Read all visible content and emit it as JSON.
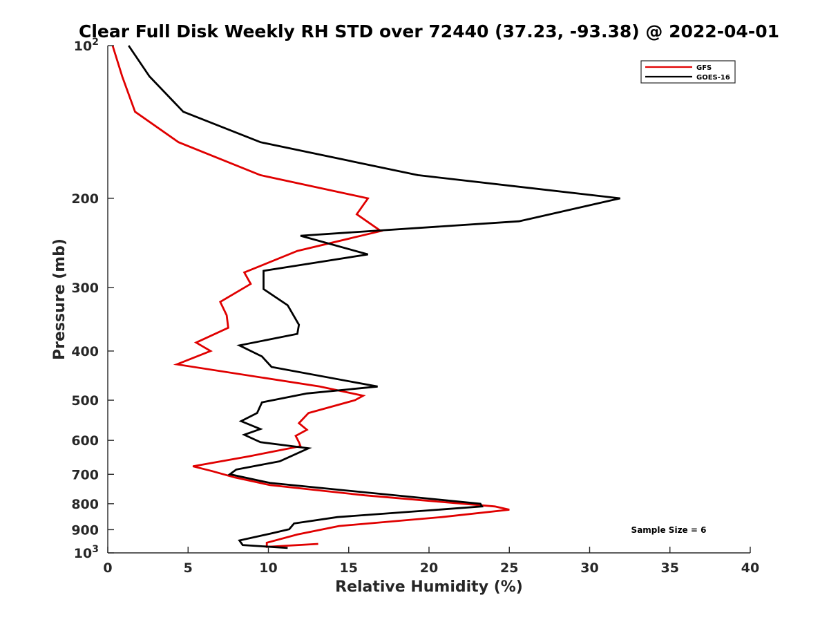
{
  "chart_data": {
    "type": "line",
    "title": "Clear Full Disk Weekly RH STD over 72440 (37.23, -93.38) @ 2022-04-01",
    "xlabel": "Relative Humidity (%)",
    "ylabel": "Pressure (mb)",
    "xlim": [
      0,
      40
    ],
    "ylim": [
      100,
      1000
    ],
    "y_scale": "log",
    "y_reversed": true,
    "x_ticks": [
      "0",
      "5",
      "10",
      "15",
      "20",
      "25",
      "30",
      "35",
      "40"
    ],
    "x_tick_values": [
      0,
      5,
      10,
      15,
      20,
      25,
      30,
      35,
      40
    ],
    "y_ticks": [
      {
        "value": 100,
        "base": "10",
        "exp": "2"
      },
      {
        "value": 200,
        "label": "200"
      },
      {
        "value": 300,
        "label": "300"
      },
      {
        "value": 400,
        "label": "400"
      },
      {
        "value": 500,
        "label": "500"
      },
      {
        "value": 600,
        "label": "600"
      },
      {
        "value": 700,
        "label": "700"
      },
      {
        "value": 800,
        "label": "800"
      },
      {
        "value": 900,
        "label": "900"
      },
      {
        "value": 1000,
        "base": "10",
        "exp": "3"
      }
    ],
    "grid": false,
    "legend_position": "top-right",
    "annotation": "Sample Size = 6",
    "series": [
      {
        "name": "GFS",
        "color": "#e00000",
        "points": [
          [
            0.3,
            100
          ],
          [
            0.9,
            115
          ],
          [
            1.7,
            135
          ],
          [
            4.4,
            155
          ],
          [
            9.5,
            180
          ],
          [
            16.2,
            200
          ],
          [
            15.5,
            215
          ],
          [
            17.0,
            232
          ],
          [
            11.8,
            254
          ],
          [
            8.5,
            280
          ],
          [
            8.9,
            295
          ],
          [
            7.0,
            320
          ],
          [
            7.4,
            340
          ],
          [
            7.5,
            360
          ],
          [
            5.5,
            385
          ],
          [
            6.4,
            400
          ],
          [
            4.3,
            425
          ],
          [
            13.2,
            470
          ],
          [
            15.9,
            490
          ],
          [
            15.4,
            500
          ],
          [
            12.5,
            530
          ],
          [
            11.9,
            555
          ],
          [
            12.4,
            572
          ],
          [
            11.7,
            588
          ],
          [
            11.9,
            605
          ],
          [
            12.0,
            616
          ],
          [
            8.8,
            645
          ],
          [
            5.3,
            675
          ],
          [
            6.5,
            690
          ],
          [
            7.9,
            710
          ],
          [
            10.1,
            735
          ],
          [
            16.0,
            770
          ],
          [
            24.1,
            810
          ],
          [
            25.0,
            822
          ],
          [
            20.8,
            850
          ],
          [
            14.4,
            885
          ],
          [
            11.8,
            920
          ],
          [
            9.9,
            955
          ],
          [
            9.9,
            973
          ],
          [
            13.1,
            960
          ]
        ]
      },
      {
        "name": "GOES-16",
        "color": "#000000",
        "points": [
          [
            1.3,
            100
          ],
          [
            2.6,
            115
          ],
          [
            4.7,
            135
          ],
          [
            9.5,
            155
          ],
          [
            19.3,
            180
          ],
          [
            31.9,
            200
          ],
          [
            25.6,
            222
          ],
          [
            12.0,
            237
          ],
          [
            16.2,
            258
          ],
          [
            9.7,
            278
          ],
          [
            9.7,
            302
          ],
          [
            11.2,
            325
          ],
          [
            11.9,
            355
          ],
          [
            11.8,
            370
          ],
          [
            8.2,
            390
          ],
          [
            9.6,
            410
          ],
          [
            10.2,
            430
          ],
          [
            16.8,
            470
          ],
          [
            12.4,
            485
          ],
          [
            9.6,
            505
          ],
          [
            9.3,
            530
          ],
          [
            8.3,
            550
          ],
          [
            9.5,
            570
          ],
          [
            8.5,
            585
          ],
          [
            9.5,
            605
          ],
          [
            12.5,
            622
          ],
          [
            10.7,
            660
          ],
          [
            8.0,
            685
          ],
          [
            7.6,
            700
          ],
          [
            10.1,
            728
          ],
          [
            23.2,
            800
          ],
          [
            23.3,
            810
          ],
          [
            14.3,
            850
          ],
          [
            11.6,
            875
          ],
          [
            11.3,
            898
          ],
          [
            10.2,
            915
          ],
          [
            8.2,
            945
          ],
          [
            8.4,
            965
          ],
          [
            11.2,
            978
          ]
        ]
      }
    ]
  }
}
